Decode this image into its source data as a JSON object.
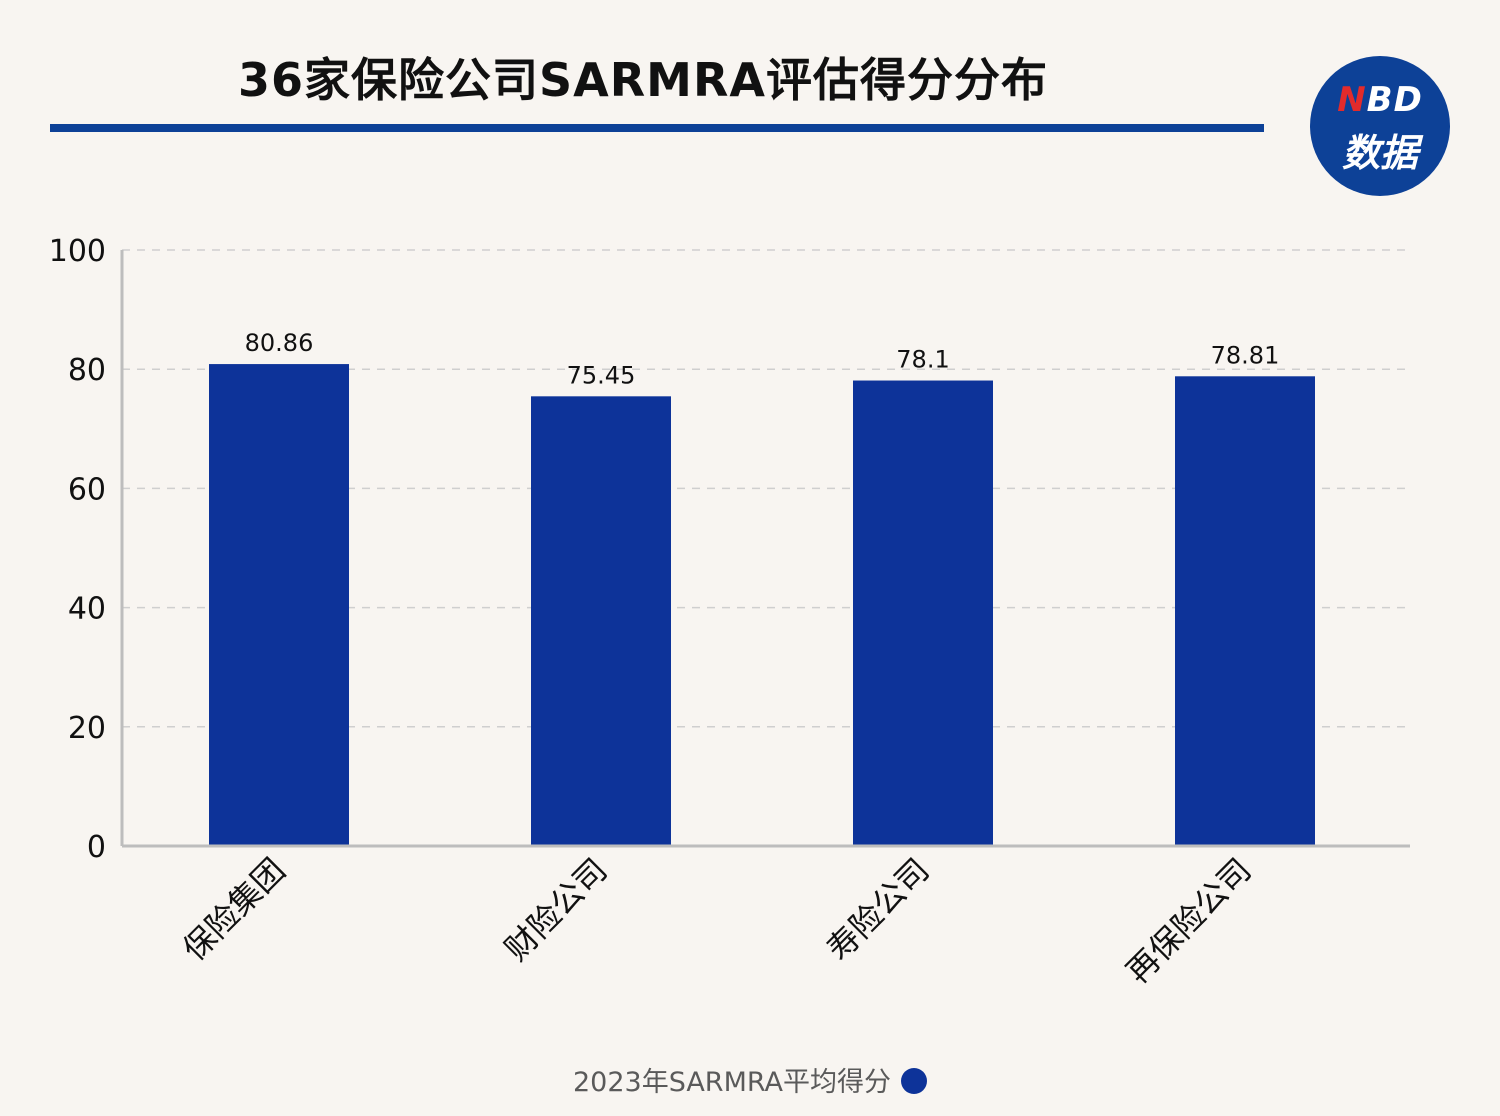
{
  "title": "36家保险公司SARMRA评估得分分布",
  "logo": {
    "line1_n": "N",
    "line1_rest": "BD",
    "line2": "数据"
  },
  "colors": {
    "bar": "#0d3399",
    "accent": "#0d4197",
    "grid": "#cfcfcf",
    "axis": "#bdbdbd"
  },
  "chart_data": {
    "type": "bar",
    "categories": [
      "保险集团",
      "财险公司",
      "寿险公司",
      "再保险公司"
    ],
    "series": [
      {
        "name": "2023年SARMRA平均得分",
        "values": [
          80.86,
          75.45,
          78.1,
          78.81
        ],
        "labels": [
          "80.86",
          "75.45",
          "78.1",
          "78.81"
        ]
      }
    ],
    "ylim": [
      0,
      100
    ],
    "yticks": [
      0,
      20,
      40,
      60,
      80,
      100
    ],
    "grid": true,
    "legend": "bottom-center",
    "xlabel": "",
    "ylabel": ""
  }
}
